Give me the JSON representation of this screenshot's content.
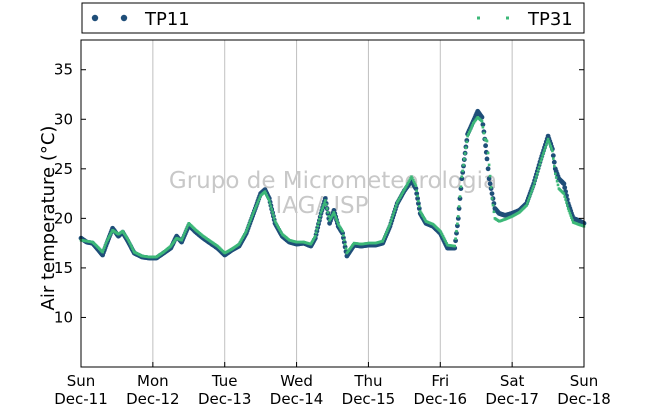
{
  "colors": {
    "tp11": "#1f4e79",
    "tp31": "#3cb878",
    "grid": "#c0c0c0",
    "watermark": "#c8c8c8"
  },
  "watermark": {
    "line1": "Grupo de Micrometeorologia",
    "line2": "IAG/USP"
  },
  "chart_data": {
    "type": "scatter",
    "title": "",
    "ylabel": "Air temperature (°C)",
    "xlabel": "",
    "ylim": [
      5,
      38
    ],
    "xlim_days": [
      0,
      7
    ],
    "yticks": [
      10,
      15,
      20,
      25,
      30,
      35
    ],
    "grid": true,
    "legend_position": "top",
    "x_ticks": [
      {
        "day": "Sun",
        "date": "Dec-11"
      },
      {
        "day": "Mon",
        "date": "Dec-12"
      },
      {
        "day": "Tue",
        "date": "Dec-13"
      },
      {
        "day": "Wed",
        "date": "Dec-14"
      },
      {
        "day": "Thu",
        "date": "Dec-15"
      },
      {
        "day": "Fri",
        "date": "Dec-16"
      },
      {
        "day": "Sat",
        "date": "Dec-17"
      },
      {
        "day": "Sun",
        "date": "Dec-18"
      }
    ],
    "series": [
      {
        "name": "TP11",
        "color": "#1f4e79",
        "marker": "circle",
        "points": [
          [
            0.0,
            18.0
          ],
          [
            0.08,
            17.6
          ],
          [
            0.16,
            17.5
          ],
          [
            0.22,
            17.0
          ],
          [
            0.3,
            16.3
          ],
          [
            0.36,
            17.5
          ],
          [
            0.44,
            19.0
          ],
          [
            0.52,
            18.2
          ],
          [
            0.58,
            18.6
          ],
          [
            0.66,
            17.6
          ],
          [
            0.74,
            16.5
          ],
          [
            0.85,
            16.1
          ],
          [
            0.95,
            16.0
          ],
          [
            1.05,
            16.0
          ],
          [
            1.15,
            16.5
          ],
          [
            1.25,
            17.0
          ],
          [
            1.33,
            18.2
          ],
          [
            1.4,
            17.6
          ],
          [
            1.5,
            19.3
          ],
          [
            1.6,
            18.6
          ],
          [
            1.7,
            18.0
          ],
          [
            1.8,
            17.5
          ],
          [
            1.9,
            17.0
          ],
          [
            2.0,
            16.3
          ],
          [
            2.1,
            16.8
          ],
          [
            2.2,
            17.2
          ],
          [
            2.3,
            18.5
          ],
          [
            2.4,
            20.5
          ],
          [
            2.5,
            22.5
          ],
          [
            2.56,
            22.9
          ],
          [
            2.62,
            22.0
          ],
          [
            2.7,
            19.5
          ],
          [
            2.8,
            18.2
          ],
          [
            2.9,
            17.6
          ],
          [
            3.0,
            17.4
          ],
          [
            3.1,
            17.5
          ],
          [
            3.2,
            17.2
          ],
          [
            3.26,
            18.0
          ],
          [
            3.34,
            20.5
          ],
          [
            3.4,
            22.0
          ],
          [
            3.46,
            19.5
          ],
          [
            3.52,
            20.8
          ],
          [
            3.58,
            19.2
          ],
          [
            3.64,
            18.5
          ],
          [
            3.7,
            16.2
          ],
          [
            3.8,
            17.3
          ],
          [
            3.9,
            17.2
          ],
          [
            4.0,
            17.3
          ],
          [
            4.1,
            17.3
          ],
          [
            4.2,
            17.5
          ],
          [
            4.3,
            19.2
          ],
          [
            4.4,
            21.5
          ],
          [
            4.5,
            22.8
          ],
          [
            4.6,
            23.8
          ],
          [
            4.66,
            23.0
          ],
          [
            4.72,
            20.5
          ],
          [
            4.8,
            19.5
          ],
          [
            4.9,
            19.2
          ],
          [
            5.0,
            18.5
          ],
          [
            5.1,
            17.0
          ],
          [
            5.2,
            17.0
          ],
          [
            5.25,
            20.0
          ],
          [
            5.3,
            24.0
          ],
          [
            5.38,
            28.5
          ],
          [
            5.46,
            29.8
          ],
          [
            5.52,
            30.8
          ],
          [
            5.58,
            30.2
          ],
          [
            5.62,
            28.0
          ],
          [
            5.65,
            26.0
          ],
          [
            5.68,
            24.0
          ],
          [
            5.72,
            22.5
          ],
          [
            5.76,
            21.0
          ],
          [
            5.82,
            20.5
          ],
          [
            5.9,
            20.3
          ],
          [
            6.0,
            20.5
          ],
          [
            6.1,
            20.8
          ],
          [
            6.2,
            21.5
          ],
          [
            6.3,
            23.5
          ],
          [
            6.4,
            26.0
          ],
          [
            6.5,
            28.3
          ],
          [
            6.56,
            27.0
          ],
          [
            6.6,
            25.0
          ],
          [
            6.65,
            24.0
          ],
          [
            6.72,
            23.5
          ],
          [
            6.78,
            21.5
          ],
          [
            6.85,
            20.0
          ],
          [
            6.92,
            19.8
          ],
          [
            7.0,
            19.5
          ]
        ]
      },
      {
        "name": "TP31",
        "color": "#3cb878",
        "marker": "square",
        "points": [
          [
            0.0,
            17.8
          ],
          [
            0.08,
            17.7
          ],
          [
            0.16,
            17.6
          ],
          [
            0.22,
            17.2
          ],
          [
            0.3,
            16.6
          ],
          [
            0.36,
            17.7
          ],
          [
            0.44,
            18.8
          ],
          [
            0.52,
            18.4
          ],
          [
            0.58,
            18.7
          ],
          [
            0.66,
            17.8
          ],
          [
            0.74,
            16.6
          ],
          [
            0.85,
            16.2
          ],
          [
            0.95,
            16.1
          ],
          [
            1.05,
            16.1
          ],
          [
            1.15,
            16.6
          ],
          [
            1.25,
            17.2
          ],
          [
            1.33,
            18.0
          ],
          [
            1.4,
            17.8
          ],
          [
            1.5,
            19.5
          ],
          [
            1.6,
            18.8
          ],
          [
            1.7,
            18.2
          ],
          [
            1.8,
            17.7
          ],
          [
            1.9,
            17.2
          ],
          [
            2.0,
            16.5
          ],
          [
            2.1,
            16.9
          ],
          [
            2.2,
            17.4
          ],
          [
            2.3,
            18.7
          ],
          [
            2.4,
            20.6
          ],
          [
            2.5,
            22.3
          ],
          [
            2.56,
            22.7
          ],
          [
            2.62,
            21.8
          ],
          [
            2.7,
            19.7
          ],
          [
            2.8,
            18.4
          ],
          [
            2.9,
            17.8
          ],
          [
            3.0,
            17.6
          ],
          [
            3.1,
            17.6
          ],
          [
            3.2,
            17.4
          ],
          [
            3.26,
            18.2
          ],
          [
            3.34,
            20.6
          ],
          [
            3.4,
            21.8
          ],
          [
            3.46,
            19.8
          ],
          [
            3.52,
            20.6
          ],
          [
            3.58,
            19.4
          ],
          [
            3.64,
            18.7
          ],
          [
            3.7,
            16.5
          ],
          [
            3.8,
            17.5
          ],
          [
            3.9,
            17.4
          ],
          [
            4.0,
            17.5
          ],
          [
            4.1,
            17.5
          ],
          [
            4.2,
            17.7
          ],
          [
            4.3,
            19.4
          ],
          [
            4.4,
            21.6
          ],
          [
            4.5,
            22.9
          ],
          [
            4.6,
            24.2
          ],
          [
            4.66,
            23.3
          ],
          [
            4.72,
            20.7
          ],
          [
            4.8,
            19.7
          ],
          [
            4.9,
            19.4
          ],
          [
            5.0,
            18.7
          ],
          [
            5.1,
            17.3
          ],
          [
            5.2,
            17.2
          ],
          [
            5.25,
            20.2
          ],
          [
            5.3,
            24.2
          ],
          [
            5.38,
            28.3
          ],
          [
            5.46,
            29.6
          ],
          [
            5.52,
            30.2
          ],
          [
            5.58,
            29.8
          ],
          [
            5.62,
            28.0
          ],
          [
            5.65,
            27.8
          ],
          [
            5.68,
            25.4
          ],
          [
            5.72,
            22.0
          ],
          [
            5.76,
            20.0
          ],
          [
            5.82,
            19.7
          ],
          [
            5.9,
            19.9
          ],
          [
            6.0,
            20.2
          ],
          [
            6.1,
            20.6
          ],
          [
            6.2,
            21.3
          ],
          [
            6.3,
            23.3
          ],
          [
            6.4,
            25.8
          ],
          [
            6.5,
            28.0
          ],
          [
            6.56,
            26.8
          ],
          [
            6.6,
            24.5
          ],
          [
            6.65,
            23.0
          ],
          [
            6.72,
            22.5
          ],
          [
            6.78,
            21.0
          ],
          [
            6.85,
            19.6
          ],
          [
            6.92,
            19.4
          ],
          [
            7.0,
            19.2
          ]
        ]
      }
    ]
  }
}
